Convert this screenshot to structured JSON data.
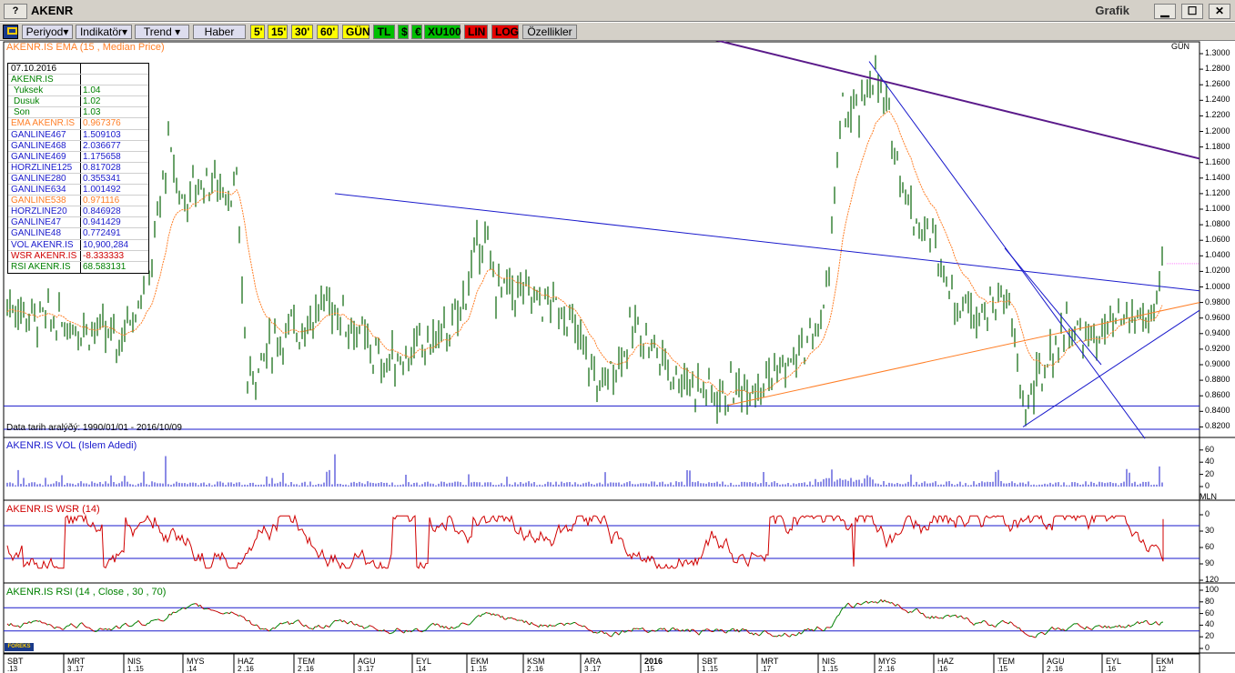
{
  "window": {
    "help": "?",
    "title": "AKENR",
    "right_title": "Grafik",
    "min": "▁",
    "max": "☐",
    "close": "✕"
  },
  "toolbar": {
    "icon": "logo-icon",
    "buttons": [
      "Periyod▾",
      "Indikatör▾",
      "Trend ▾",
      "Haber",
      "5'",
      "15'",
      "30'",
      "60'",
      "GÜN",
      "TL",
      "$",
      "€",
      "XU100",
      "LIN",
      "LOG",
      "Özellikler"
    ]
  },
  "colors": {
    "candle": "#2a7a2a",
    "ema": "#ff7f27",
    "trend_blue": "#1a1acc",
    "trend_purple": "#5a1a8a",
    "wsr": "#d00000",
    "rsi_green": "#008000",
    "rsi_red": "#c00000",
    "highlight_red": "#e60000",
    "highlight_yellow": "#ffff00",
    "highlight_green": "#00c000"
  },
  "price_panel": {
    "label": "AKENR.IS EMA (15 , Median Price)",
    "period": "GÜN",
    "y_ticks": [
      "1.3000",
      "1.2800",
      "1.2600",
      "1.2400",
      "1.2200",
      "1.2000",
      "1.1800",
      "1.1600",
      "1.1400",
      "1.1200",
      "1.1000",
      "1.0800",
      "1.0600",
      "1.0400",
      "1.0200",
      "1.0000",
      "0.9800",
      "0.9600",
      "0.9400",
      "0.9200",
      "0.9000",
      "0.8800",
      "0.8600",
      "0.8400",
      "0.8200"
    ],
    "date_range": "Data tarih aralýðý: 1990/01/01 - 2016/10/09"
  },
  "info_box": {
    "date": "07.10.2016",
    "symbol": "AKENR.IS",
    "rows": [
      {
        "k": "Yuksek",
        "v": "1.04",
        "color": "#008000"
      },
      {
        "k": "Dusuk",
        "v": "1.02",
        "color": "#008000"
      },
      {
        "k": "Son",
        "v": "1.03",
        "color": "#008000"
      },
      {
        "k": "EMA AKENR.IS",
        "v": "0.967376",
        "color": "#ff7f27"
      },
      {
        "k": "GANLINE467",
        "v": "1.509103",
        "color": "#1a1acc"
      },
      {
        "k": "GANLINE468",
        "v": "2.036677",
        "color": "#1a1acc"
      },
      {
        "k": "GANLINE469",
        "v": "1.175658",
        "color": "#1a1acc"
      },
      {
        "k": "HORZLINE125",
        "v": "0.817028",
        "color": "#1a1acc"
      },
      {
        "k": "GANLINE280",
        "v": "0.355341",
        "color": "#1a1acc"
      },
      {
        "k": "GANLINE634",
        "v": "1.001492",
        "color": "#1a1acc"
      },
      {
        "k": "GANLINE538",
        "v": "0.971116",
        "color": "#ff7f27"
      },
      {
        "k": "HORZLINE20",
        "v": "0.846928",
        "color": "#1a1acc"
      },
      {
        "k": "GANLINE47",
        "v": "0.941429",
        "color": "#1a1acc"
      },
      {
        "k": "GANLINE48",
        "v": "0.772491",
        "color": "#1a1acc"
      },
      {
        "k": "VOL AKENR.IS",
        "v": "10,900,284",
        "color": "#1a1acc"
      },
      {
        "k": "WSR AKENR.IS",
        "v": "-8.333333",
        "color": "#d00000"
      },
      {
        "k": "RSI AKENR.IS",
        "v": "68.583131",
        "color": "#008000"
      }
    ]
  },
  "vol_panel": {
    "label": "AKENR.IS VOL (Islem Adedi)",
    "y_ticks": [
      "60",
      "40",
      "20",
      "0"
    ],
    "unit": "MLN"
  },
  "wsr_panel": {
    "label": "AKENR.IS WSR (14)",
    "y_ticks": [
      "0",
      "30",
      "60",
      "90",
      "120"
    ]
  },
  "rsi_panel": {
    "label": "AKENR.IS RSI (14 , Close , 30 , 70)",
    "y_ticks": [
      "100",
      "80",
      "60",
      "40",
      "20",
      "0"
    ]
  },
  "x_axis": {
    "months": [
      "SBT",
      "MRT",
      "NIS",
      "MYS",
      "HAZ",
      "TEM",
      "AGU",
      "EYL",
      "EKM",
      "KSM",
      "ARA",
      "2016",
      "SBT",
      "MRT",
      "NIS",
      "MYS",
      "HAZ",
      "TEM",
      "AGU",
      "EYL",
      "EKM"
    ],
    "subs": [
      ".13",
      "3  .17",
      "1  .15",
      ".14",
      "2  .16",
      "2  .16",
      "3  .17",
      ".14",
      "1  .15",
      "2  .16",
      "3  .17",
      ".15",
      "1  .15",
      ".17",
      "1  .15",
      "2  .16",
      ".16",
      ".15",
      "2  .16",
      ".16",
      ".12"
    ]
  },
  "brand": "FOREKS"
}
